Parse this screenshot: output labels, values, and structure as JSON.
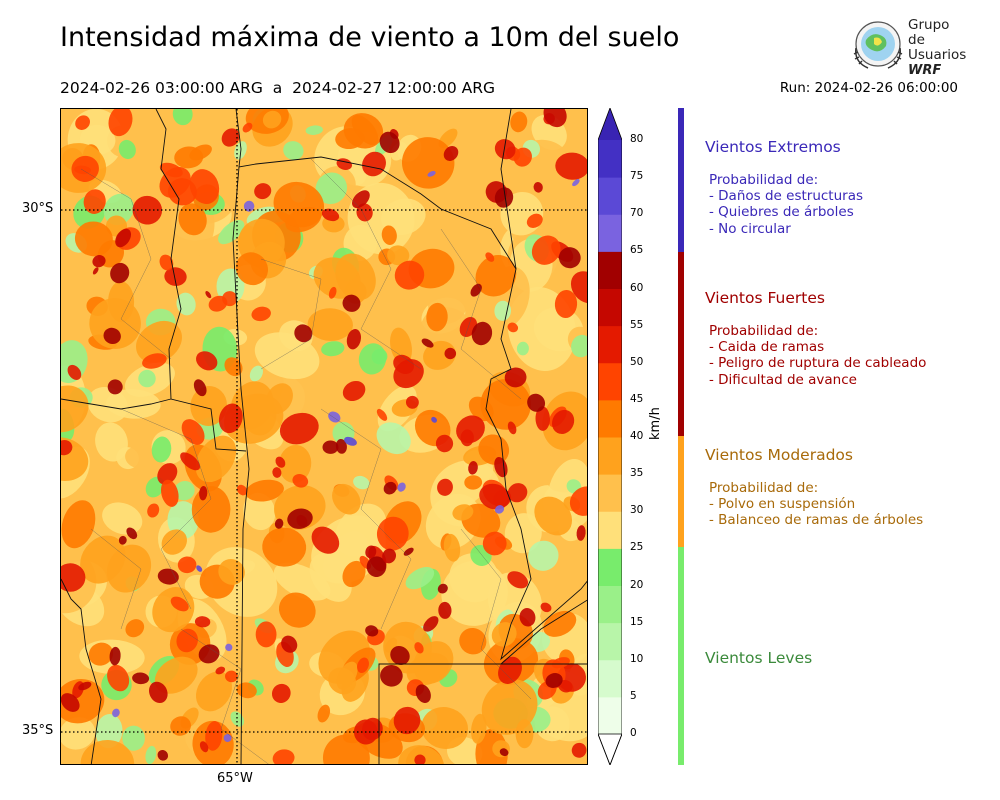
{
  "title": "Intensidad máxima de viento a 10m del suelo",
  "subtitle": "2024-02-26 03:00:00 ARG  a  2024-02-27 12:00:00 ARG",
  "run": "Run: 2024-02-26 06:00:00",
  "logo": {
    "line1": "Grupo de",
    "line2": "Usuarios",
    "line3": "WRF"
  },
  "axes": {
    "lat_labels": [
      "30°S",
      "35°S"
    ],
    "lon_labels": [
      "65°W"
    ]
  },
  "colorbar": {
    "unit": "km/h",
    "ticks": [
      "0",
      "5",
      "10",
      "15",
      "20",
      "25",
      "30",
      "35",
      "40",
      "45",
      "50",
      "55",
      "60",
      "65",
      "70",
      "75",
      "80"
    ],
    "colors": [
      "#eefee9",
      "#d6fbcd",
      "#b8f5a9",
      "#9af089",
      "#78ec6c",
      "#ffe07a",
      "#ffc04c",
      "#ffa21d",
      "#ff7a00",
      "#ff4400",
      "#e41a00",
      "#c50700",
      "#a10000",
      "#7a63e0",
      "#5b49d6",
      "#4330c4",
      "#3924b3"
    ]
  },
  "categories": [
    {
      "title": "Vientos Extremos",
      "color": "#3a28b8",
      "band": "#3a28b8",
      "lines": [
        "Probabilidad de:",
        "- Daños de estructuras",
        "- Quiebres de árboles",
        "- No circular"
      ]
    },
    {
      "title": "Vientos Fuertes",
      "color": "#a00000",
      "band": "#a00000",
      "lines": [
        "Probabilidad de:",
        "- Caida de ramas",
        "- Peligro de ruptura de cableado",
        "- Dificultad de avance"
      ]
    },
    {
      "title": "Vientos Moderados",
      "color": "#a86a0a",
      "band": "#ffa21d",
      "lines": [
        "Probabilidad de:",
        "- Polvo en suspensión",
        "- Balanceo de ramas de árboles"
      ]
    },
    {
      "title": "Vientos Leves",
      "color": "#3b8a3b",
      "band": "#78ec6c",
      "lines": []
    }
  ]
}
